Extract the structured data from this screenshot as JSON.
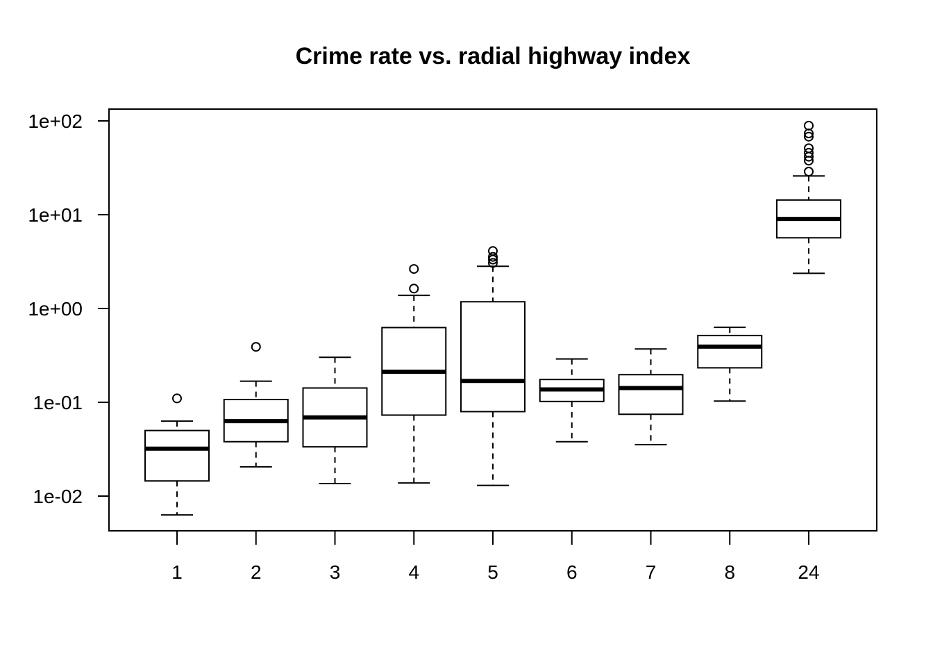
{
  "chart_data": {
    "type": "boxplot",
    "title": "Crime rate vs. radial highway index",
    "xlabel": "",
    "ylabel": "",
    "y_scale": "log",
    "ylim": [
      0.0045,
      110
    ],
    "y_ticks": [
      {
        "value": 0.01,
        "label": "1e-02"
      },
      {
        "value": 0.1,
        "label": "1e-01"
      },
      {
        "value": 1,
        "label": "1e+00"
      },
      {
        "value": 10,
        "label": "1e+01"
      },
      {
        "value": 100,
        "label": "1e+02"
      }
    ],
    "grid": false,
    "legend": "none",
    "categories": [
      "1",
      "2",
      "3",
      "4",
      "5",
      "6",
      "7",
      "8",
      "24"
    ],
    "boxes": [
      {
        "category": "1",
        "min": 0.0063,
        "q1": 0.0145,
        "median": 0.032,
        "q3": 0.05,
        "max": 0.063,
        "outliers": [
          0.11
        ]
      },
      {
        "category": "2",
        "min": 0.0205,
        "q1": 0.038,
        "median": 0.063,
        "q3": 0.107,
        "max": 0.168,
        "outliers": [
          0.39
        ]
      },
      {
        "category": "3",
        "min": 0.0136,
        "q1": 0.0335,
        "median": 0.069,
        "q3": 0.142,
        "max": 0.302,
        "outliers": []
      },
      {
        "category": "4",
        "min": 0.0138,
        "q1": 0.073,
        "median": 0.212,
        "q3": 0.626,
        "max": 1.38,
        "outliers": [
          1.63,
          2.64
        ]
      },
      {
        "category": "5",
        "min": 0.013,
        "q1": 0.0795,
        "median": 0.169,
        "q3": 1.18,
        "max": 2.82,
        "outliers": [
          3.06,
          3.32,
          3.55,
          4.1
        ]
      },
      {
        "category": "6",
        "min": 0.038,
        "q1": 0.102,
        "median": 0.137,
        "q3": 0.175,
        "max": 0.29,
        "outliers": []
      },
      {
        "category": "7",
        "min": 0.0353,
        "q1": 0.0745,
        "median": 0.142,
        "q3": 0.197,
        "max": 0.37,
        "outliers": []
      },
      {
        "category": "8",
        "min": 0.103,
        "q1": 0.233,
        "median": 0.392,
        "q3": 0.515,
        "max": 0.629,
        "outliers": []
      },
      {
        "category": "24",
        "min": 2.37,
        "q1": 5.67,
        "median": 9.01,
        "q3": 14.34,
        "max": 25.9,
        "outliers": [
          28.8,
          37.7,
          41.5,
          45.7,
          51.1,
          67.9,
          73.5,
          89.0
        ]
      }
    ]
  }
}
